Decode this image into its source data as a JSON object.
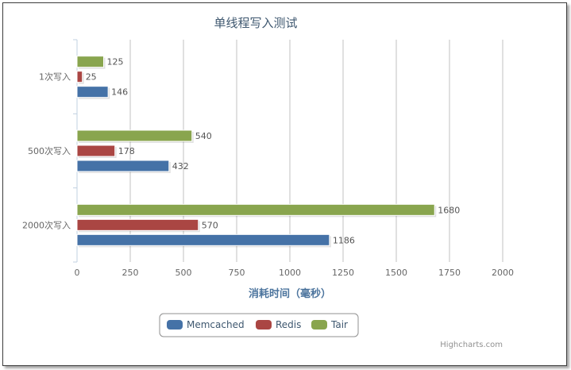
{
  "chart_data": {
    "type": "bar",
    "orientation": "horizontal",
    "title": "单线程写入测试",
    "xlabel": "消耗时间（毫秒）",
    "ylabel": "",
    "categories": [
      "1次写入",
      "500次写入",
      "2000次写入"
    ],
    "series": [
      {
        "name": "Tair",
        "color": "#89a54e",
        "values": [
          125,
          540,
          1680
        ]
      },
      {
        "name": "Redis",
        "color": "#aa4643",
        "values": [
          25,
          178,
          570
        ]
      },
      {
        "name": "Memcached",
        "color": "#4572a7",
        "values": [
          146,
          432,
          1186
        ]
      }
    ],
    "xlim": [
      0,
      2000
    ],
    "ticks": [
      "0",
      "250",
      "500",
      "750",
      "1000",
      "1250",
      "1500",
      "1750",
      "2000"
    ],
    "tick_values": [
      0,
      250,
      500,
      750,
      1000,
      1250,
      1500,
      1750,
      2000
    ],
    "grid": true,
    "data_labels": true,
    "legend": {
      "placement": "bottom-center",
      "items": [
        {
          "name": "Memcached",
          "color": "#4572a7"
        },
        {
          "name": "Redis",
          "color": "#aa4643"
        },
        {
          "name": "Tair",
          "color": "#89a54e"
        }
      ]
    },
    "credit": "Highcharts.com"
  }
}
